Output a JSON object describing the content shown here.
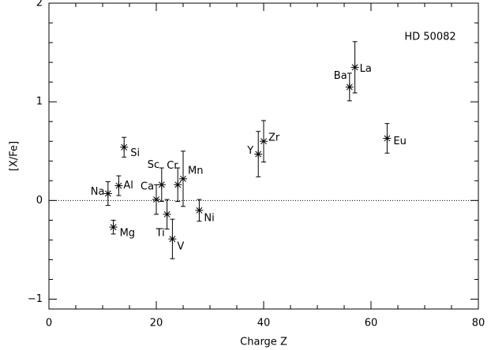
{
  "chart_data": {
    "type": "scatter",
    "annotation": "HD 50082",
    "xlabel": "Charge Z",
    "ylabel": "[X/Fe]",
    "labels": [
      "Na",
      "Mg",
      "Al",
      "Si",
      "Ca",
      "Sc",
      "Ti",
      "V",
      "Cr",
      "Mn",
      "Ni",
      "Y",
      "Zr",
      "Ba",
      "La",
      "Eu"
    ],
    "x": [
      11,
      12,
      13,
      14,
      20,
      21,
      22,
      23,
      24,
      25,
      28,
      39,
      40,
      56,
      57,
      63
    ],
    "values": [
      0.07,
      -0.27,
      0.15,
      0.54,
      0.01,
      0.16,
      -0.14,
      -0.39,
      0.16,
      0.22,
      -0.1,
      0.47,
      0.6,
      1.15,
      1.35,
      0.63
    ],
    "errors": [
      0.12,
      0.07,
      0.1,
      0.1,
      0.15,
      0.17,
      0.15,
      0.2,
      0.17,
      0.28,
      0.11,
      0.23,
      0.21,
      0.14,
      0.26,
      0.15
    ],
    "color": "#000000",
    "reference_line": 0,
    "xlim": [
      0,
      80
    ],
    "xticks": [
      0,
      20,
      40,
      60,
      80
    ],
    "xminorticks": [
      5,
      10,
      15,
      25,
      30,
      35,
      45,
      50,
      55,
      65,
      70,
      75
    ],
    "ylim": [
      -1.1,
      2
    ],
    "yticks": [
      {
        "value": -1,
        "label": "−1"
      },
      0,
      1,
      2
    ],
    "yminorticks": [
      -0.8,
      -0.6,
      -0.4,
      -0.2,
      0.2,
      0.4,
      0.6,
      0.8,
      1.2,
      1.4,
      1.6,
      1.8
    ]
  }
}
